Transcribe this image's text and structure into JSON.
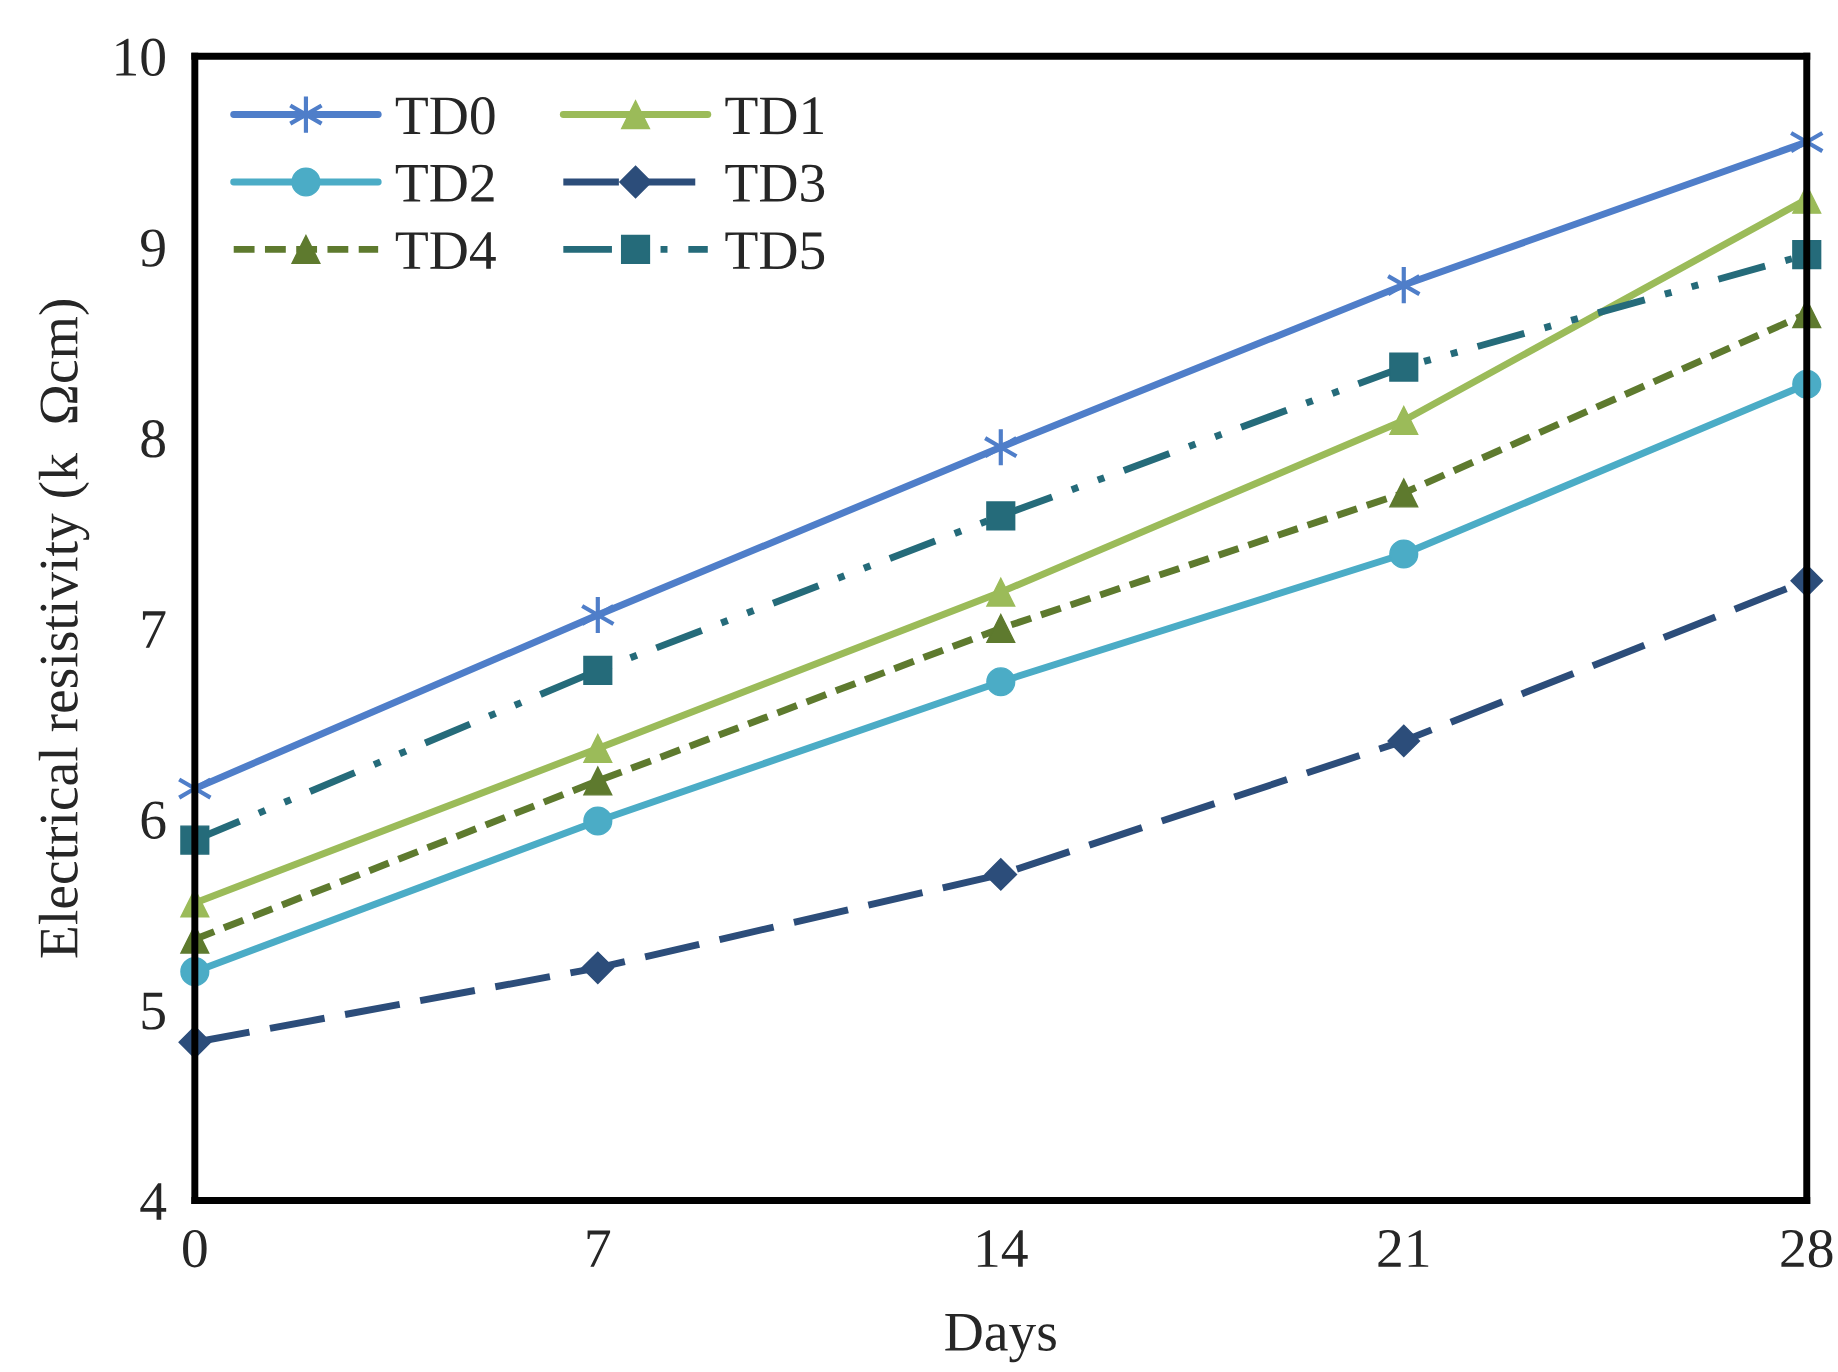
{
  "chart_data": {
    "type": "line",
    "xlabel": "Days",
    "ylabel": "Electrical resistivity (k  Ωcm)",
    "x": [
      0,
      7,
      14,
      21,
      28
    ],
    "xlim": [
      0,
      28
    ],
    "xticks": [
      0,
      7,
      14,
      21,
      28
    ],
    "ylim": [
      4,
      10
    ],
    "yticks": [
      4,
      5,
      6,
      7,
      8,
      9,
      10
    ],
    "grid": false,
    "legend": "top left",
    "series": [
      {
        "name": "TD0",
        "color": "#4f7ec9",
        "marker": "cross",
        "line_style": "solid",
        "values": [
          6.16,
          7.07,
          7.95,
          8.8,
          9.55
        ]
      },
      {
        "name": "TD1",
        "color": "#9bbb59",
        "marker": "triangle",
        "line_style": "solid",
        "values": [
          5.56,
          6.37,
          7.19,
          8.09,
          9.25
        ]
      },
      {
        "name": "TD2",
        "color": "#4bacc6",
        "marker": "circle",
        "line_style": "solid",
        "values": [
          5.2,
          5.99,
          6.72,
          7.39,
          8.28
        ]
      },
      {
        "name": "TD3",
        "color": "#2c4d7a",
        "marker": "diamond",
        "line_style": "dashed",
        "values": [
          4.83,
          5.22,
          5.71,
          6.41,
          7.25
        ]
      },
      {
        "name": "TD4",
        "color": "#5e7a2e",
        "marker": "triangle",
        "line_style": "dotted",
        "values": [
          5.37,
          6.2,
          7.0,
          7.71,
          8.65
        ]
      },
      {
        "name": "TD5",
        "color": "#256b7a",
        "marker": "square",
        "line_style": "dashdot",
        "values": [
          5.89,
          6.78,
          7.59,
          8.37,
          8.96
        ]
      }
    ]
  }
}
